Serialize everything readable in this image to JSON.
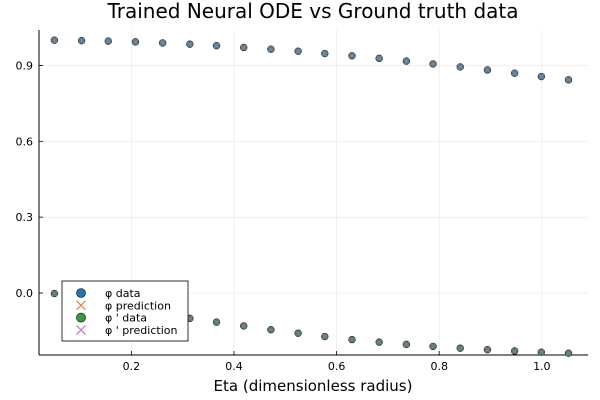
{
  "chart_data": {
    "type": "scatter",
    "title": "Trained Neural ODE vs Ground truth data",
    "xlabel": "Eta (dimensionless radius)",
    "ylabel": "",
    "xlim": [
      0.02,
      1.09
    ],
    "ylim": [
      -0.245,
      1.04
    ],
    "xticks": [
      0.2,
      0.4,
      0.6,
      0.8,
      1.0
    ],
    "xtick_labels": [
      "0.2",
      "0.4",
      "0.6",
      "0.8",
      "1.0"
    ],
    "yticks": [
      0.0,
      0.3,
      0.6,
      0.9
    ],
    "ytick_labels": [
      "0.0",
      "0.3",
      "0.6",
      "0.9"
    ],
    "grid": true,
    "legend_position": "bottom-left",
    "x": [
      0.05,
      0.103,
      0.155,
      0.208,
      0.261,
      0.314,
      0.366,
      0.419,
      0.472,
      0.525,
      0.577,
      0.63,
      0.683,
      0.736,
      0.788,
      0.841,
      0.894,
      0.947,
      0.999,
      1.052
    ],
    "series": [
      {
        "name": "φ data",
        "marker": "circle",
        "color": "#1f77b4",
        "values": [
          0.9996,
          0.998,
          0.996,
          0.993,
          0.989,
          0.984,
          0.978,
          0.971,
          0.964,
          0.956,
          0.947,
          0.938,
          0.928,
          0.917,
          0.906,
          0.894,
          0.882,
          0.869,
          0.856,
          0.843
        ]
      },
      {
        "name": "φ prediction",
        "marker": "x",
        "color": "#e3884a",
        "values": [
          0.9996,
          0.998,
          0.996,
          0.993,
          0.989,
          0.984,
          0.978,
          0.971,
          0.964,
          0.956,
          0.947,
          0.938,
          0.928,
          0.917,
          0.906,
          0.894,
          0.882,
          0.869,
          0.856,
          0.843
        ]
      },
      {
        "name": "φ ' data",
        "marker": "circle",
        "color": "#3a9a3a",
        "values": [
          -0.002,
          -0.034,
          -0.052,
          -0.068,
          -0.084,
          -0.1,
          -0.115,
          -0.13,
          -0.145,
          -0.159,
          -0.172,
          -0.184,
          -0.194,
          -0.203,
          -0.211,
          -0.218,
          -0.224,
          -0.229,
          -0.234,
          -0.238
        ]
      },
      {
        "name": "φ ' prediction",
        "marker": "x",
        "color": "#c478c9",
        "values": [
          -0.002,
          -0.034,
          -0.052,
          -0.068,
          -0.084,
          -0.1,
          -0.115,
          -0.13,
          -0.145,
          -0.159,
          -0.172,
          -0.184,
          -0.194,
          -0.203,
          -0.211,
          -0.218,
          -0.224,
          -0.229,
          -0.234,
          -0.238
        ]
      }
    ],
    "overlap_colors": [
      "#4a7fa5",
      "#4e7f68"
    ]
  }
}
